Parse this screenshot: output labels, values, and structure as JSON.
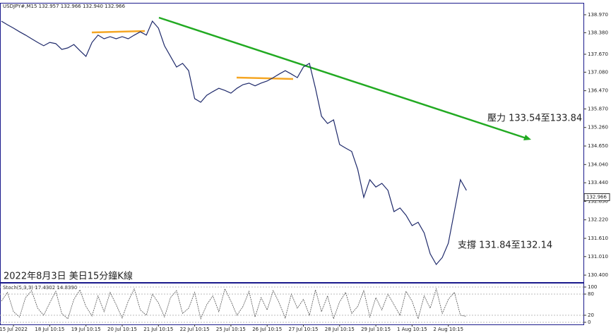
{
  "header": "USDJPY#,M15  132.957 132.966 132.940 132.966",
  "chart_data": [
    {
      "type": "line",
      "x": [
        null,
        null,
        "15 Jul 2022",
        null,
        null,
        null,
        null,
        null,
        "18 Jul 10:15",
        null,
        null,
        null,
        null,
        null,
        "19 Jul 10:15",
        null,
        null,
        null,
        null,
        null,
        "20 Jul 10:15",
        null,
        null,
        null,
        null,
        null,
        "21 Jul 10:15",
        null,
        null,
        null,
        null,
        null,
        "22 Jul 10:15",
        null,
        null,
        null,
        null,
        null,
        "25 Jul 10:15",
        null,
        null,
        null,
        null,
        null,
        "26 Jul 10:15",
        null,
        null,
        null,
        null,
        null,
        "27 Jul 10:15",
        null,
        null,
        null,
        null,
        null,
        "28 Jul 10:15",
        null,
        null,
        null,
        null,
        null,
        "29 Jul 10:15",
        null,
        null,
        null,
        null,
        null,
        "1 Aug 10:15",
        null,
        null,
        null,
        null,
        null,
        "2 Aug 10:15",
        null,
        null,
        null
      ],
      "series": [
        {
          "color": "#1f2a6b",
          "values": [
            138.76,
            138.64,
            138.53,
            138.41,
            138.3,
            138.18,
            138.06,
            137.95,
            138.06,
            138.02,
            137.83,
            137.88,
            137.99,
            137.79,
            137.6,
            138.06,
            138.3,
            138.18,
            138.25,
            138.18,
            138.25,
            138.18,
            138.3,
            138.41,
            138.3,
            138.76,
            138.53,
            137.95,
            137.6,
            137.25,
            137.37,
            137.13,
            136.21,
            136.09,
            136.32,
            136.44,
            136.55,
            136.48,
            136.39,
            136.55,
            136.67,
            136.72,
            136.63,
            136.72,
            136.79,
            136.9,
            137.02,
            137.13,
            137.02,
            136.9,
            137.25,
            137.37,
            136.55,
            135.63,
            135.39,
            135.51,
            134.7,
            134.58,
            134.47,
            133.88,
            132.96,
            133.54,
            133.3,
            133.42,
            133.19,
            132.49,
            132.61,
            132.37,
            132.03,
            132.14,
            131.79,
            131.1,
            130.75,
            130.98,
            131.45,
            132.49,
            133.54,
            133.19
          ]
        }
      ],
      "ylim": [
        130.17,
        139.34
      ],
      "yticks": [
        {
          "value": 138.97,
          "label": "138.970"
        },
        {
          "value": 138.38,
          "label": "138.380"
        },
        {
          "value": 137.67,
          "label": "137.670"
        },
        {
          "value": 137.08,
          "label": "137.080"
        },
        {
          "value": 136.47,
          "label": "136.470"
        },
        {
          "value": 135.87,
          "label": "135.870"
        },
        {
          "value": 135.26,
          "label": "135.260"
        },
        {
          "value": 134.65,
          "label": "134.650"
        },
        {
          "value": 134.04,
          "label": "134.040"
        },
        {
          "value": 133.44,
          "label": "133.440"
        },
        {
          "value": 132.83,
          "label": "132.830"
        },
        {
          "value": 132.22,
          "label": "132.220"
        },
        {
          "value": 131.61,
          "label": "131.610"
        },
        {
          "value": 131.01,
          "label": "131.010"
        },
        {
          "value": 130.4,
          "label": "130.400"
        }
      ],
      "last_price": 132.966,
      "annotations": [
        "壓力 133.54至133.84",
        "支撐 131.84至132.14",
        "2022年8月3日 美日15分鐘K線"
      ]
    },
    {
      "type": "line",
      "title": "Stoch(5,3,3) 17.4302 14.8390",
      "series": [
        {
          "color": "#555555",
          "values": [
            60,
            85,
            30,
            15,
            70,
            90,
            40,
            20,
            55,
            88,
            25,
            10,
            65,
            92,
            45,
            18,
            75,
            30,
            85,
            50,
            12,
            60,
            95,
            35,
            20,
            80,
            55,
            15,
            70,
            90,
            25,
            40,
            85,
            10,
            50,
            75,
            30,
            95,
            60,
            20,
            45,
            88,
            15,
            70,
            35,
            90,
            55,
            12,
            80,
            40,
            65,
            20,
            92,
            30,
            75,
            10,
            58,
            85,
            25,
            45,
            90,
            15,
            70,
            35,
            80,
            50,
            20,
            88,
            60,
            10,
            75,
            40,
            95,
            25,
            65,
            85,
            20,
            17
          ]
        }
      ],
      "ylim": [
        -6,
        110
      ],
      "yticks": [
        0,
        20,
        80,
        100
      ]
    }
  ]
}
